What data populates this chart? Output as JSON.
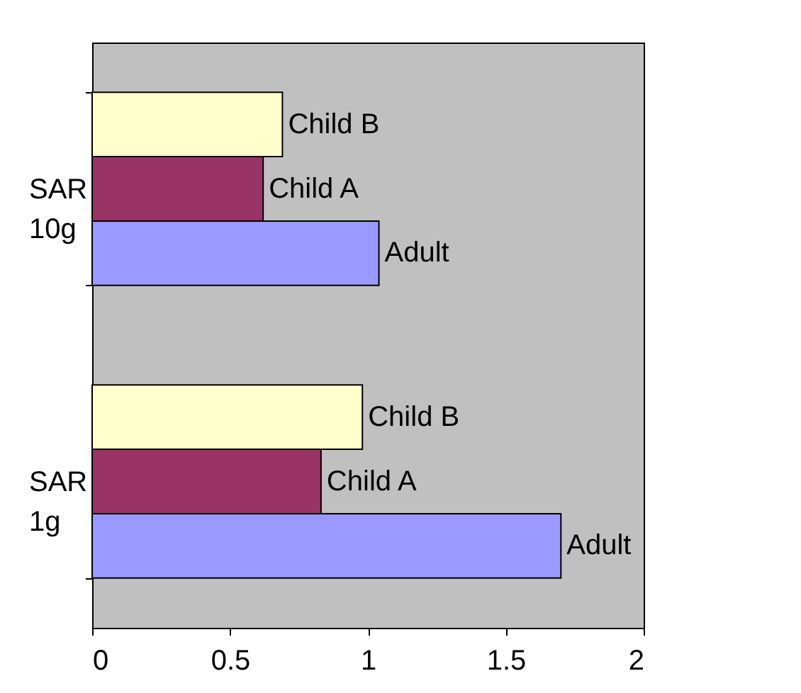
{
  "chart_data": {
    "type": "bar",
    "orientation": "horizontal",
    "categories": [
      "SAR\n10g",
      "SAR\n1g"
    ],
    "series": [
      {
        "name": "Child B",
        "color": "#ffffcc",
        "values": [
          0.69,
          0.98
        ]
      },
      {
        "name": "Child A",
        "color": "#993366",
        "values": [
          0.62,
          0.83
        ]
      },
      {
        "name": "Adult",
        "color": "#9999ff",
        "values": [
          1.04,
          1.7
        ]
      }
    ],
    "xlim": [
      0,
      2
    ],
    "xticks": [
      0,
      0.5,
      1,
      1.5,
      2
    ],
    "grid": false,
    "legend": false
  }
}
